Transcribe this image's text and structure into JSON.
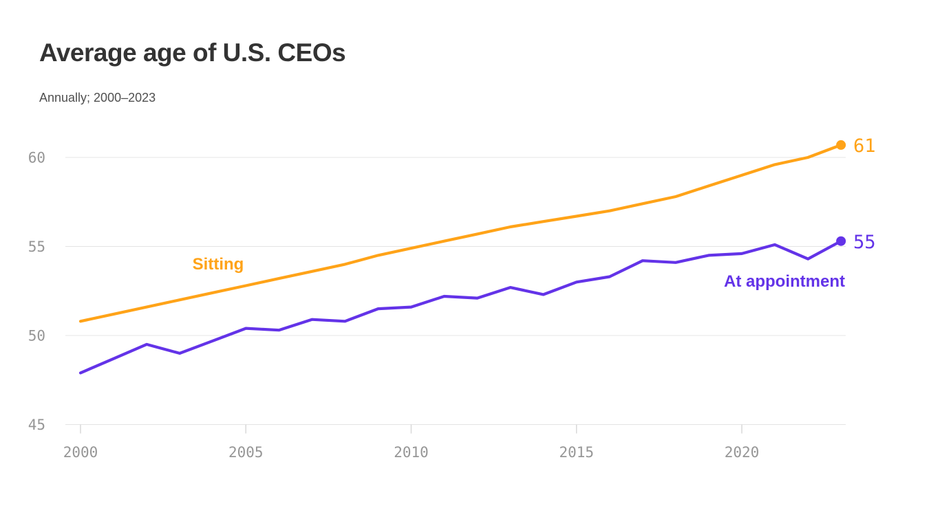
{
  "chart_data": {
    "type": "line",
    "title": "Average age of U.S. CEOs",
    "subtitle": "Annually; 2000–2023",
    "x": [
      2000,
      2001,
      2002,
      2003,
      2004,
      2005,
      2006,
      2007,
      2008,
      2009,
      2010,
      2011,
      2012,
      2013,
      2014,
      2015,
      2016,
      2017,
      2018,
      2019,
      2020,
      2021,
      2022,
      2023
    ],
    "series": [
      {
        "name": "Sitting",
        "color": "#FFA318",
        "end_label": "61",
        "values": [
          50.8,
          51.2,
          51.6,
          52.0,
          52.4,
          52.8,
          53.2,
          53.6,
          54.0,
          54.5,
          54.9,
          55.3,
          55.7,
          56.1,
          56.4,
          56.7,
          57.0,
          57.4,
          57.8,
          58.4,
          59.0,
          59.6,
          60.0,
          60.7
        ]
      },
      {
        "name": "At appointment",
        "color": "#6333E8",
        "end_label": "55",
        "values": [
          47.9,
          48.7,
          49.5,
          49.0,
          49.7,
          50.4,
          50.3,
          50.9,
          50.8,
          51.5,
          51.6,
          52.2,
          52.1,
          52.7,
          52.3,
          53.0,
          53.3,
          54.2,
          54.1,
          54.5,
          54.6,
          55.1,
          54.3,
          55.3
        ]
      }
    ],
    "xticks": [
      2000,
      2005,
      2010,
      2015,
      2020
    ],
    "yticks": [
      60,
      55,
      50,
      45
    ],
    "ylim": [
      44.5,
      62
    ],
    "xlabel": "",
    "ylabel": "",
    "grid": "horizontal",
    "legend": "inline-labels"
  },
  "colors": {
    "background": "#ffffff",
    "title": "#333333",
    "subtitle": "#4f4f4f",
    "tick_label": "#969696",
    "gridline": "#e4e4e4",
    "sitting": "#FFA318",
    "at_appointment": "#6333E8"
  }
}
